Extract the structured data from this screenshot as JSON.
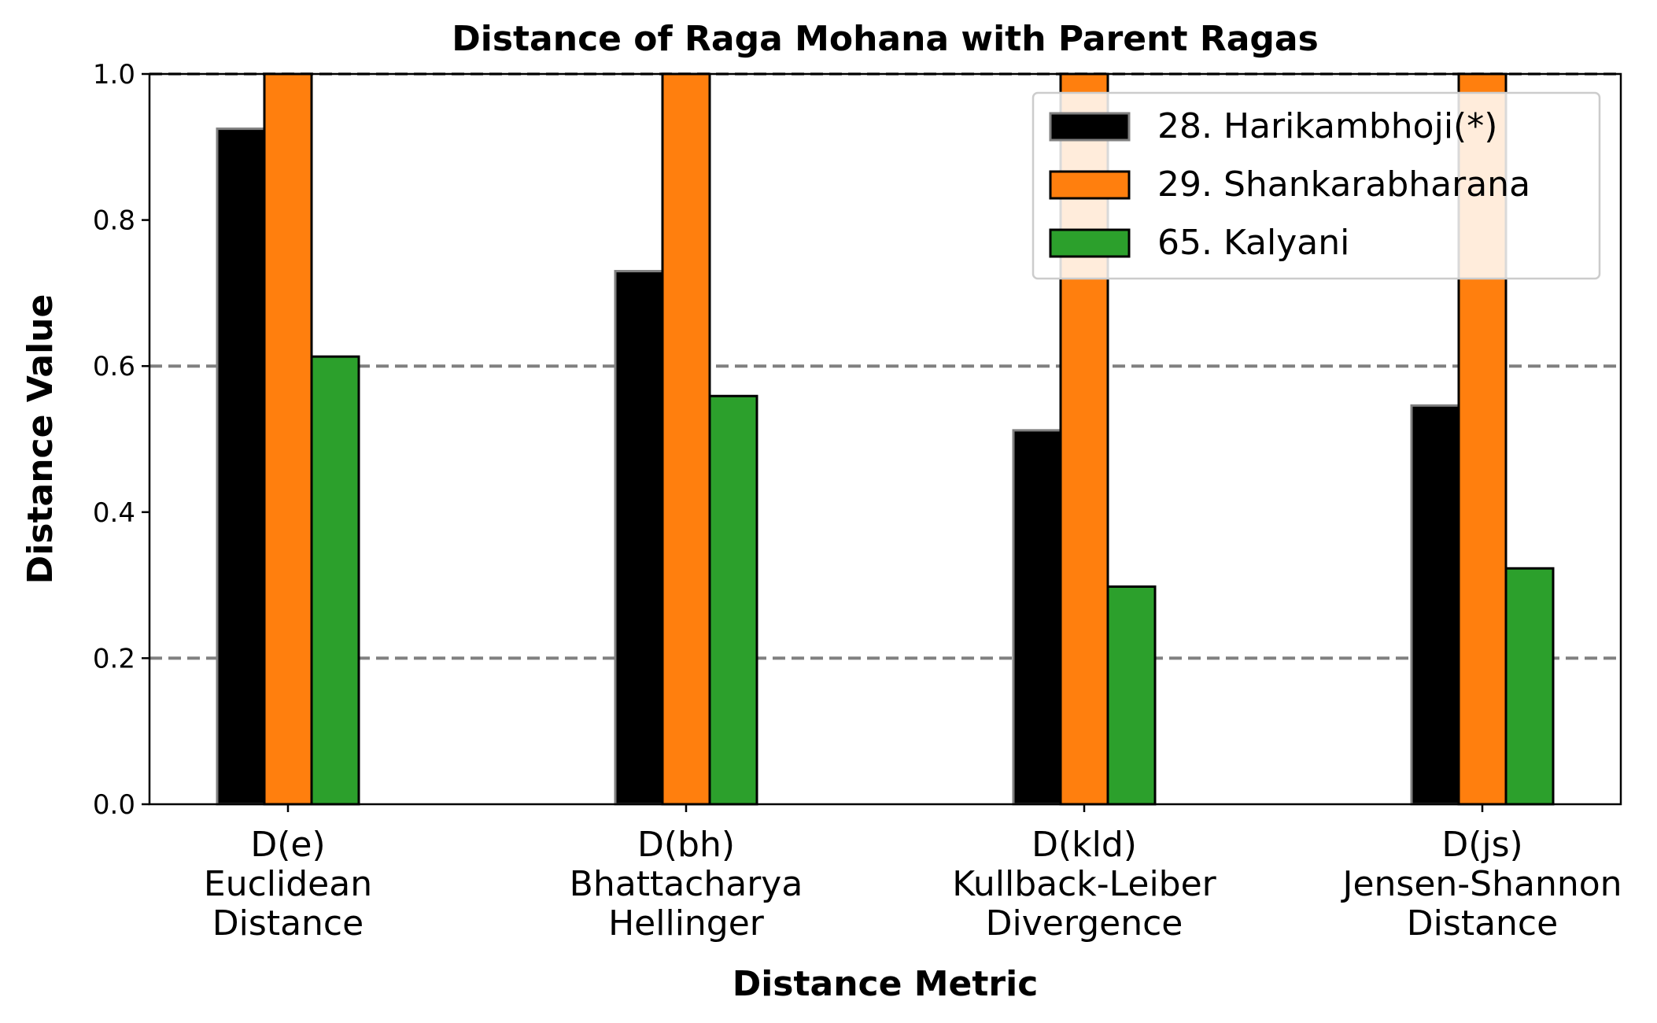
{
  "chart_data": {
    "type": "bar",
    "title": "Distance of Raga Mohana with Parent Ragas",
    "xlabel": "Distance Metric",
    "ylabel": "Distance Value",
    "ylim": [
      0,
      1.0
    ],
    "yticks": [
      "0.0",
      "0.2",
      "0.4",
      "0.6",
      "0.8",
      "1.0"
    ],
    "reference_lines": [
      0.2,
      0.6,
      1.0
    ],
    "categories": [
      [
        "D(e)",
        "Euclidean",
        "Distance"
      ],
      [
        "D(bh)",
        "Bhattacharya",
        "Hellinger"
      ],
      [
        "D(kld)",
        "Kullback-Leiber",
        "Divergence"
      ],
      [
        "D(js)",
        "Jensen-Shannon",
        "Distance"
      ]
    ],
    "series": [
      {
        "name": "28. Harikambhoji(*)",
        "color": "#000000",
        "edge": "#808080",
        "values": [
          0.925,
          0.73,
          0.512,
          0.546
        ]
      },
      {
        "name": "29. Shankarabharana",
        "color": "#ff7f0e",
        "edge": "#000000",
        "values": [
          1.0,
          1.0,
          1.0,
          1.0
        ]
      },
      {
        "name": "65. Kalyani",
        "color": "#2ca02c",
        "edge": "#000000",
        "values": [
          0.613,
          0.559,
          0.298,
          0.323
        ]
      }
    ],
    "legend_position": "top-right",
    "grid": false
  }
}
